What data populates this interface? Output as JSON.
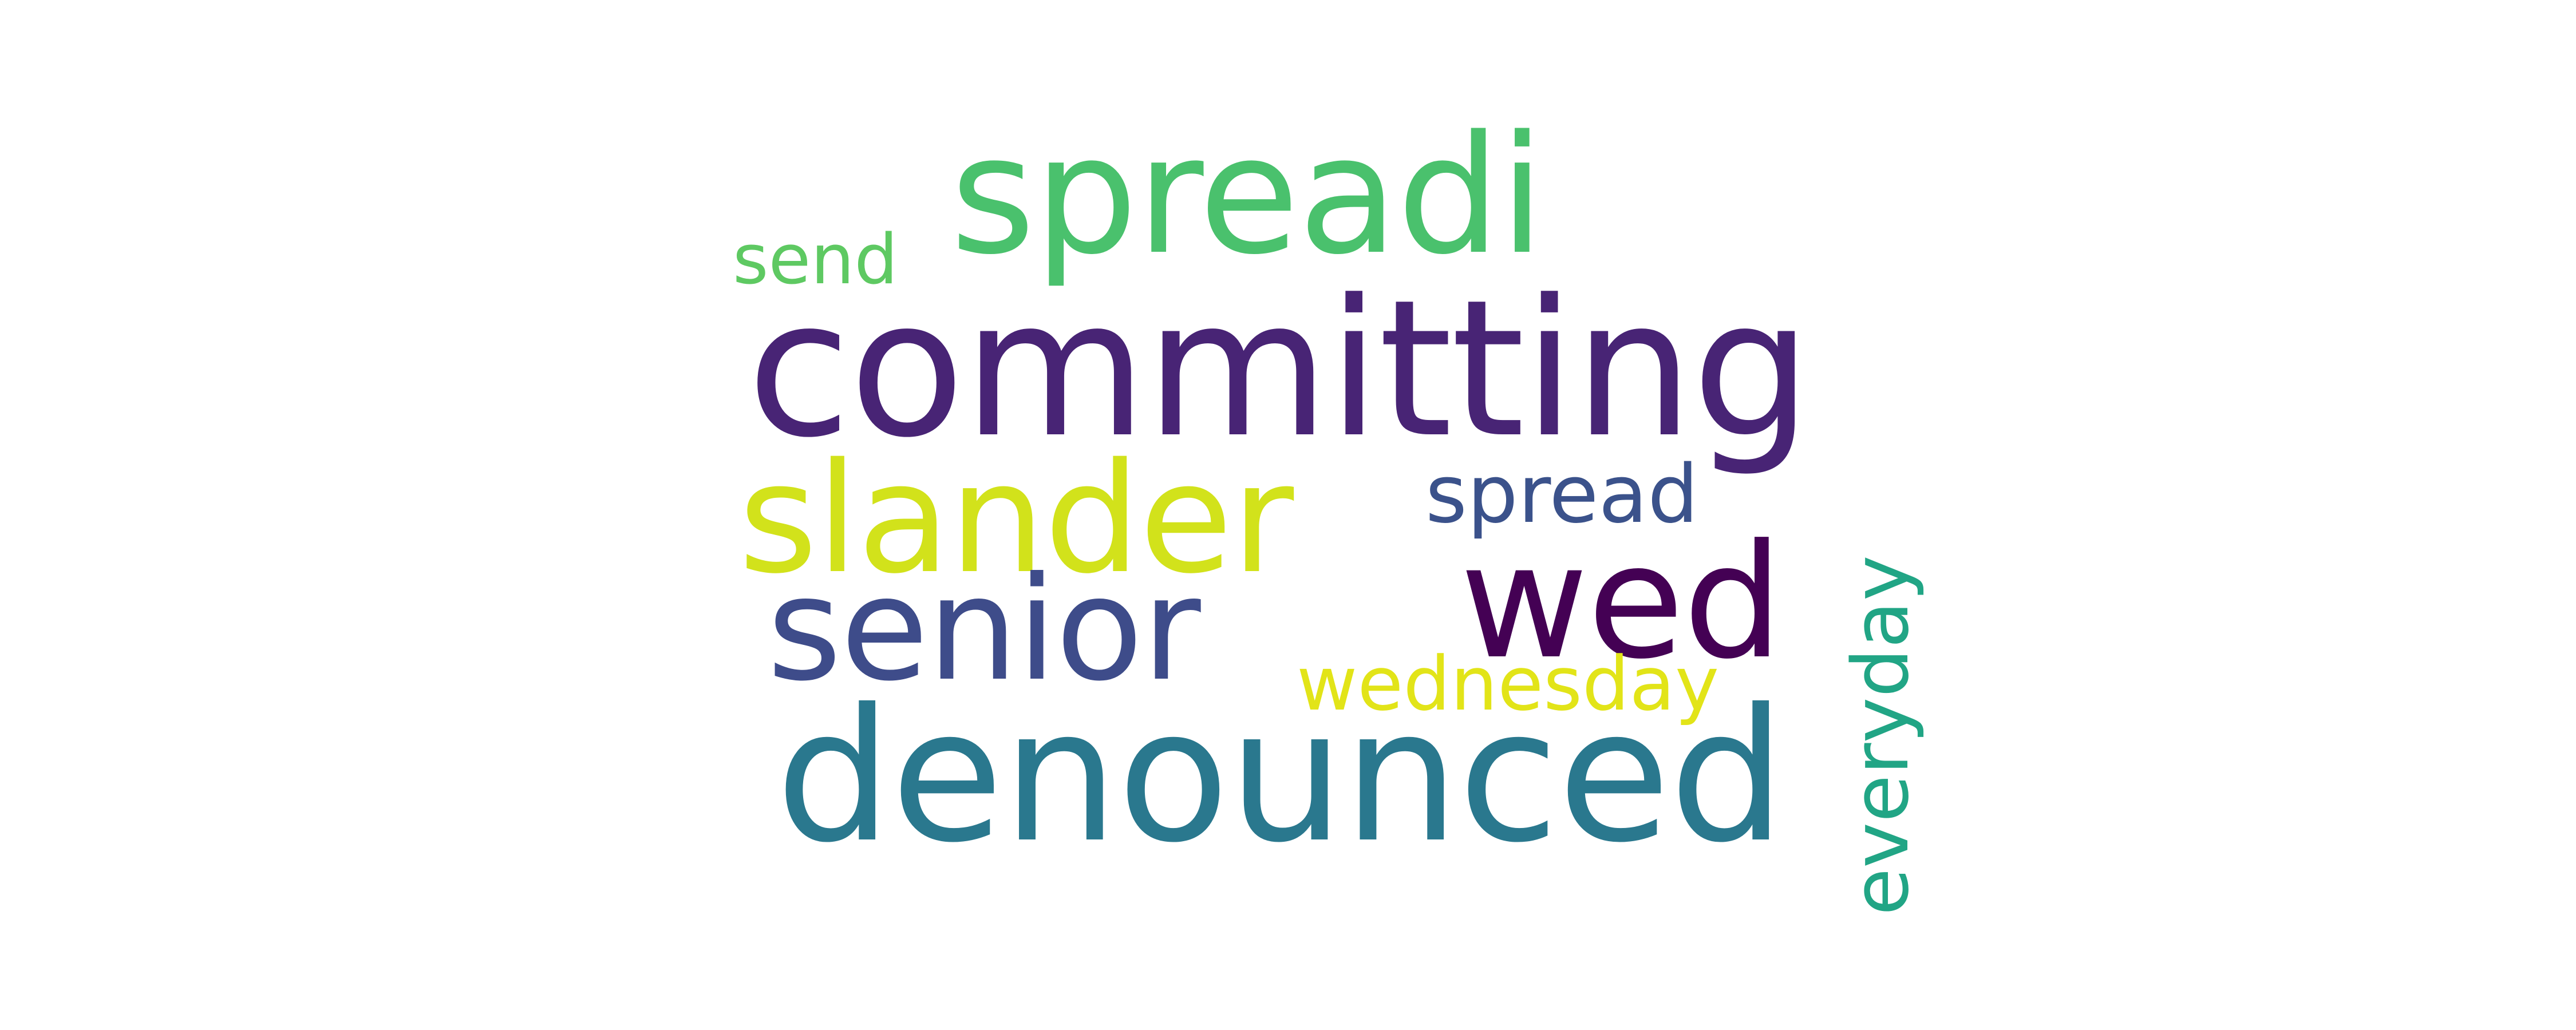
{
  "words": {
    "committing": {
      "text": "committing",
      "color": "#482475"
    },
    "denounced": {
      "text": "denounced",
      "color": "#2a788e"
    },
    "spreadi": {
      "text": "spreadi",
      "color": "#4ac16d"
    },
    "slander": {
      "text": "slander",
      "color": "#d2e21b"
    },
    "senior": {
      "text": "senior",
      "color": "#3e4c8a"
    },
    "wed": {
      "text": "wed",
      "color": "#440154"
    },
    "wednesday": {
      "text": "wednesday",
      "color": "#e2e418"
    },
    "spread": {
      "text": "spread",
      "color": "#3b528b"
    },
    "send": {
      "text": "send",
      "color": "#5ec962"
    },
    "everyday": {
      "text": "everyday",
      "color": "#21a585"
    }
  }
}
